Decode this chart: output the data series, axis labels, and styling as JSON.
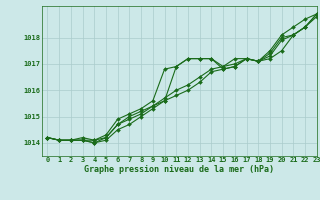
{
  "xlabel": "Graphe pression niveau de la mer (hPa)",
  "ylim": [
    1013.5,
    1019.2
  ],
  "xlim": [
    -0.5,
    23.0
  ],
  "yticks": [
    1014,
    1015,
    1016,
    1017,
    1018
  ],
  "xticks": [
    0,
    1,
    2,
    3,
    4,
    5,
    6,
    7,
    8,
    9,
    10,
    11,
    12,
    13,
    14,
    15,
    16,
    17,
    18,
    19,
    20,
    21,
    22,
    23
  ],
  "bg_color": "#cce8e8",
  "grid_color": "#aacccc",
  "line_color": "#1a6b1a",
  "series": [
    [
      1014.2,
      1014.1,
      1014.1,
      1014.1,
      1014.1,
      1014.3,
      1014.9,
      1015.1,
      1015.3,
      1015.6,
      1016.8,
      1016.9,
      1017.2,
      1017.2,
      1017.2,
      1016.9,
      1017.2,
      1017.2,
      1017.1,
      1017.5,
      1018.1,
      1018.4,
      1018.7,
      1018.9
    ],
    [
      1014.2,
      1014.1,
      1014.1,
      1014.1,
      1014.0,
      1014.1,
      1014.5,
      1014.7,
      1015.0,
      1015.3,
      1015.6,
      1016.9,
      1017.2,
      1017.2,
      1017.2,
      1016.8,
      1016.9,
      1017.2,
      1017.1,
      1017.2,
      1017.5,
      1018.1,
      1018.4,
      1018.8
    ],
    [
      1014.2,
      1014.1,
      1014.1,
      1014.1,
      1014.0,
      1014.2,
      1014.7,
      1015.0,
      1015.2,
      1015.4,
      1015.6,
      1015.8,
      1016.0,
      1016.3,
      1016.7,
      1016.8,
      1016.9,
      1017.2,
      1017.1,
      1017.4,
      1018.0,
      1018.1,
      1018.4,
      1018.9
    ],
    [
      1014.2,
      1014.1,
      1014.1,
      1014.2,
      1014.1,
      1014.2,
      1014.7,
      1014.9,
      1015.1,
      1015.4,
      1015.7,
      1016.0,
      1016.2,
      1016.5,
      1016.8,
      1016.9,
      1017.0,
      1017.2,
      1017.1,
      1017.3,
      1017.9,
      1018.1,
      1018.4,
      1018.9
    ]
  ],
  "marker": "D",
  "markersize": 2.0,
  "linewidth": 0.8,
  "tick_fontsize": 5.0,
  "label_fontsize": 6.0,
  "label_fontweight": "bold"
}
